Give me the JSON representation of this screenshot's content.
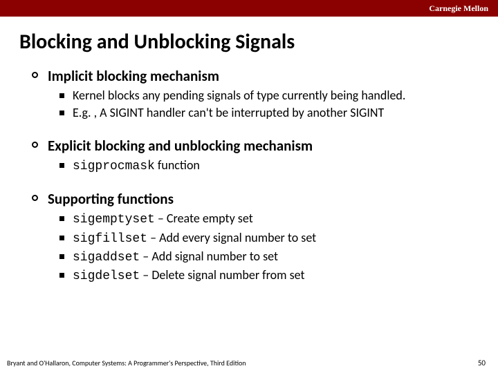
{
  "header": {
    "org": "Carnegie Mellon"
  },
  "title": "Blocking and Unblocking Signals",
  "sections": [
    {
      "heading": "Implicit blocking mechanism",
      "items": [
        {
          "text": "Kernel blocks any pending signals of type currently being handled."
        },
        {
          "text": "E.g. , A SIGINT handler can't be interrupted by another SIGINT"
        }
      ]
    },
    {
      "heading": "Explicit blocking and unblocking mechanism",
      "items": [
        {
          "code": "sigprocmask",
          "tail": " function"
        }
      ]
    },
    {
      "heading": "Supporting functions",
      "items": [
        {
          "code": "sigemptyset",
          "tail": " – Create empty set"
        },
        {
          "code": "sigfillset",
          "tail": " – Add every signal number to set"
        },
        {
          "code": "sigaddset",
          "tail": " – Add signal number to set"
        },
        {
          "code": "sigdelset",
          "tail": " – Delete signal number from set"
        }
      ]
    }
  ],
  "footer": {
    "citation": "Bryant and O'Hallaron, Computer Systems: A Programmer's Perspective, Third Edition",
    "page": "50"
  }
}
